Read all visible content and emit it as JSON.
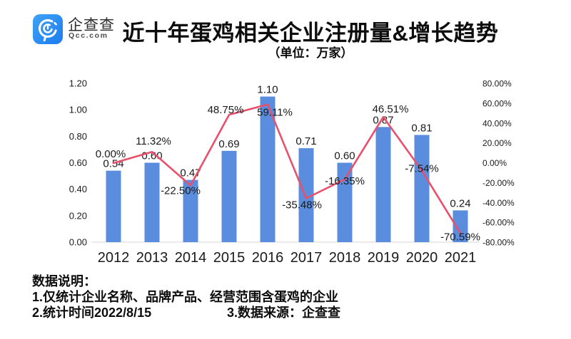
{
  "header": {
    "brand": {
      "name_cn": "企查查",
      "name_en": "Qcc.com",
      "logo_color": "#2a90f0"
    },
    "title": "近十年蛋鸡相关企业注册量&增长趋势",
    "subtitle": "（单位：万家）"
  },
  "chart_data": {
    "type": "bar+line",
    "title": "近十年蛋鸡相关企业注册量&增长趋势",
    "unit": "万家",
    "categories": [
      "2012",
      "2013",
      "2014",
      "2015",
      "2016",
      "2017",
      "2018",
      "2019",
      "2020",
      "2021"
    ],
    "series": [
      {
        "name": "注册量",
        "type": "bar",
        "axis": "left",
        "color": "#5b8dde",
        "values": [
          0.54,
          0.6,
          0.47,
          0.69,
          1.1,
          0.71,
          0.6,
          0.87,
          0.81,
          0.24
        ],
        "labels": [
          "0.54",
          "0.60",
          "0.47",
          "0.69",
          "1.10",
          "0.71",
          "0.60",
          "0.87",
          "0.81",
          "0.24"
        ]
      },
      {
        "name": "增长趋势",
        "type": "line",
        "axis": "right",
        "color": "#e8506b",
        "values": [
          0.0,
          11.32,
          -22.5,
          48.75,
          59.11,
          -35.48,
          -16.35,
          46.51,
          -7.54,
          -70.59
        ],
        "labels": [
          "0.00%",
          "11.32%",
          "-22.50%",
          "48.75%",
          "59.11%",
          "-35.48%",
          "-16.35%",
          "46.51%",
          "-7.54%",
          "-70.59%"
        ],
        "label_offsets": [
          [
            -4,
            -8
          ],
          [
            2,
            -10
          ],
          [
            -14,
            12
          ],
          [
            -5,
            -2
          ],
          [
            10,
            16
          ],
          [
            -6,
            14
          ],
          [
            0,
            7
          ],
          [
            10,
            -6
          ],
          [
            0,
            2
          ],
          [
            0,
            10
          ]
        ]
      }
    ],
    "left_axis": {
      "min": 0,
      "max": 1.2,
      "step": 0.2,
      "ticks": [
        "0.00",
        "0.20",
        "0.40",
        "0.60",
        "0.80",
        "1.00",
        "1.20"
      ]
    },
    "right_axis": {
      "min": -80,
      "max": 80,
      "step": 20,
      "ticks": [
        "80.00%",
        "60.00%",
        "40.00%",
        "20.00%",
        "0.00%",
        "-20.00%",
        "-40.00%",
        "-60.00%",
        "-80.00%"
      ]
    },
    "grid": false,
    "legend_position": "none"
  },
  "notes": {
    "heading": "数据说明：",
    "line1": "1.仅统计企业名称、品牌产品、经营范围含蛋鸡的企业",
    "line2a": "2.统计时间2022/8/15",
    "line2b": "3.数据来源：企查查"
  }
}
